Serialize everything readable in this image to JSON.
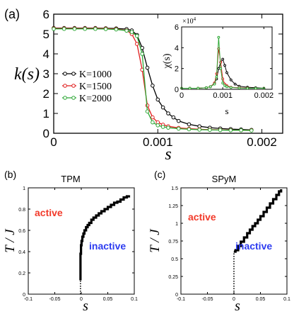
{
  "panels": {
    "a": "(a)",
    "b": "(b)",
    "c": "(c)"
  },
  "chart_data": [
    {
      "id": "a-main",
      "type": "line",
      "xlabel": "s",
      "ylabel": "k(s)",
      "xlim": [
        0,
        0.0022
      ],
      "ylim": [
        0,
        6
      ],
      "xticks": [
        "0",
        "0.001",
        "0.002"
      ],
      "xtick_values": [
        0,
        0.001,
        0.002
      ],
      "yticks": [
        "0",
        "1",
        "2",
        "3",
        "4",
        "5",
        "6"
      ],
      "ytick_values": [
        0,
        1,
        2,
        3,
        4,
        5,
        6
      ],
      "legend_position": "left",
      "series": [
        {
          "name": "K=1000",
          "color": "#000000",
          "x": [
            0,
            0.0001,
            0.0002,
            0.0003,
            0.0004,
            0.0005,
            0.0006,
            0.0007,
            0.00075,
            0.0008,
            0.00085,
            0.0009,
            0.00095,
            0.001,
            0.00105,
            0.0011,
            0.00115,
            0.0012,
            0.0013,
            0.0014,
            0.0015,
            0.0016,
            0.0017,
            0.0018,
            0.0019
          ],
          "y": [
            5.3,
            5.3,
            5.3,
            5.3,
            5.3,
            5.29,
            5.28,
            5.25,
            5.18,
            4.95,
            4.3,
            3.3,
            2.4,
            1.7,
            1.3,
            1.0,
            0.8,
            0.62,
            0.45,
            0.35,
            0.28,
            0.24,
            0.21,
            0.19,
            0.17
          ]
        },
        {
          "name": "K=1500",
          "color": "#e01e1e",
          "x": [
            0,
            0.0001,
            0.0002,
            0.0003,
            0.0004,
            0.0005,
            0.0006,
            0.0007,
            0.00075,
            0.0008,
            0.00085,
            0.0009,
            0.00095,
            0.001,
            0.00105,
            0.0011,
            0.0012,
            0.0013,
            0.0014,
            0.0015,
            0.0016,
            0.0017,
            0.0018,
            0.0019
          ],
          "y": [
            5.28,
            5.28,
            5.28,
            5.28,
            5.28,
            5.27,
            5.25,
            5.18,
            5.0,
            4.5,
            3.2,
            1.4,
            0.8,
            0.55,
            0.43,
            0.35,
            0.27,
            0.23,
            0.2,
            0.18,
            0.17,
            0.16,
            0.15,
            0.15
          ]
        },
        {
          "name": "K=2000",
          "color": "#2ea836",
          "x": [
            0,
            0.0001,
            0.0002,
            0.0003,
            0.0004,
            0.0005,
            0.0006,
            0.0007,
            0.00075,
            0.0008,
            0.00085,
            0.0009,
            0.00095,
            0.001,
            0.00105,
            0.0011,
            0.0012,
            0.0013,
            0.0014,
            0.0015,
            0.0016,
            0.0017,
            0.0018,
            0.0019
          ],
          "y": [
            5.26,
            5.26,
            5.26,
            5.26,
            5.26,
            5.25,
            5.23,
            5.17,
            5.1,
            4.9,
            4.0,
            1.1,
            0.55,
            0.4,
            0.32,
            0.28,
            0.23,
            0.2,
            0.18,
            0.17,
            0.16,
            0.15,
            0.15,
            0.14
          ]
        }
      ]
    },
    {
      "id": "a-inset",
      "type": "line",
      "xlabel": "s",
      "ylabel": "χ(s)",
      "multiplier": "×10",
      "multiplier_exp": "4",
      "xlim": [
        0,
        0.0022
      ],
      "ylim": [
        0,
        6
      ],
      "xticks": [
        "0",
        "0.001",
        "0.002"
      ],
      "xtick_values": [
        0,
        0.001,
        0.002
      ],
      "yticks": [
        "0",
        "2",
        "4",
        "6"
      ],
      "ytick_values": [
        0,
        2,
        4,
        6
      ],
      "series": [
        {
          "name": "K=1000",
          "color": "#000000",
          "x": [
            0,
            0.0002,
            0.0004,
            0.0006,
            0.0007,
            0.0008,
            0.00085,
            0.0009,
            0.00095,
            0.001,
            0.00105,
            0.0011,
            0.0012,
            0.0013,
            0.0014,
            0.0016,
            0.0018,
            0.002
          ],
          "y": [
            0.1,
            0.1,
            0.1,
            0.15,
            0.25,
            0.6,
            1.0,
            2.0,
            2.6,
            2.9,
            2.3,
            1.6,
            0.9,
            0.5,
            0.3,
            0.2,
            0.15,
            0.1
          ]
        },
        {
          "name": "K=1500",
          "color": "#e01e1e",
          "x": [
            0,
            0.0002,
            0.0004,
            0.0006,
            0.0007,
            0.0008,
            0.00085,
            0.0009,
            0.00095,
            0.001,
            0.00105,
            0.0011,
            0.0012,
            0.0014,
            0.0016,
            0.0018,
            0.002
          ],
          "y": [
            0.1,
            0.1,
            0.1,
            0.15,
            0.25,
            0.6,
            1.5,
            3.9,
            2.6,
            1.0,
            0.5,
            0.35,
            0.2,
            0.15,
            0.12,
            0.1,
            0.1
          ]
        },
        {
          "name": "K=2000",
          "color": "#2ea836",
          "x": [
            0,
            0.0002,
            0.0004,
            0.0006,
            0.0007,
            0.0008,
            0.00085,
            0.0009,
            0.00095,
            0.001,
            0.00105,
            0.0011,
            0.0012,
            0.0014,
            0.0016,
            0.0018,
            0.002
          ],
          "y": [
            0.1,
            0.1,
            0.1,
            0.15,
            0.25,
            0.5,
            1.2,
            5.0,
            2.0,
            0.6,
            0.35,
            0.25,
            0.18,
            0.13,
            0.1,
            0.1,
            0.1
          ]
        }
      ]
    },
    {
      "id": "b",
      "type": "line",
      "title": "TPM",
      "xlabel": "s",
      "ylabel": "T / J",
      "xlim": [
        -0.1,
        0.1
      ],
      "ylim": [
        0,
        1
      ],
      "xticks": [
        "-0.1",
        "-0.05",
        "0",
        "0.05",
        "0.1"
      ],
      "xtick_values": [
        -0.1,
        -0.05,
        0,
        0.05,
        0.1
      ],
      "yticks": [
        "0",
        "0.2",
        "0.4",
        "0.6",
        "0.8",
        "1"
      ],
      "ytick_values": [
        0,
        0.2,
        0.4,
        0.6,
        0.8,
        1
      ],
      "annotations": {
        "active": "active",
        "inactive": "inactive"
      },
      "series": [
        {
          "name": "boundary",
          "color": "#000000",
          "x": [
            -0.0015,
            -0.0015,
            -0.0005,
            0.0005,
            0.002,
            0.004,
            0.006,
            0.009,
            0.012,
            0.015,
            0.019,
            0.023,
            0.028,
            0.033,
            0.038,
            0.044,
            0.05,
            0.056,
            0.062,
            0.068,
            0.074,
            0.08,
            0.086,
            0.09
          ],
          "y": [
            0.13,
            0.38,
            0.46,
            0.5,
            0.54,
            0.57,
            0.6,
            0.63,
            0.65,
            0.67,
            0.7,
            0.72,
            0.74,
            0.76,
            0.78,
            0.8,
            0.82,
            0.84,
            0.86,
            0.87,
            0.89,
            0.91,
            0.92,
            0.93
          ]
        },
        {
          "name": "dashed",
          "color": "#000000",
          "x": [
            -0.0015,
            -0.0015
          ],
          "y": [
            0,
            0.13
          ]
        }
      ]
    },
    {
      "id": "c",
      "type": "line",
      "title": "SPyM",
      "xlabel": "s",
      "ylabel": "T / J",
      "xlim": [
        -0.1,
        0.1
      ],
      "ylim": [
        0,
        1.5
      ],
      "xticks": [
        "-0.1",
        "-0.05",
        "0",
        "0.05",
        "0.1"
      ],
      "xtick_values": [
        -0.1,
        -0.05,
        0,
        0.05,
        0.1
      ],
      "yticks": [
        "0",
        "0.25",
        "0.5",
        "0.75",
        "1",
        "1.25",
        "1.5"
      ],
      "ytick_values": [
        0,
        0.25,
        0.5,
        0.75,
        1,
        1.25,
        1.5
      ],
      "annotations": {
        "active": "active",
        "inactive": "inactive"
      },
      "series": [
        {
          "name": "boundary",
          "color": "#000000",
          "x": [
            0.0,
            0.003,
            0.008,
            0.013,
            0.019,
            0.025,
            0.03,
            0.035,
            0.04,
            0.045,
            0.05,
            0.056,
            0.062,
            0.068,
            0.074,
            0.08,
            0.085,
            0.089
          ],
          "y": [
            0.6,
            0.62,
            0.68,
            0.74,
            0.8,
            0.86,
            0.91,
            0.96,
            1.0,
            1.05,
            1.1,
            1.16,
            1.22,
            1.28,
            1.34,
            1.4,
            1.45,
            1.48
          ]
        },
        {
          "name": "dashed",
          "color": "#000000",
          "x": [
            0.0,
            0.0
          ],
          "y": [
            0,
            0.6
          ]
        }
      ]
    }
  ]
}
